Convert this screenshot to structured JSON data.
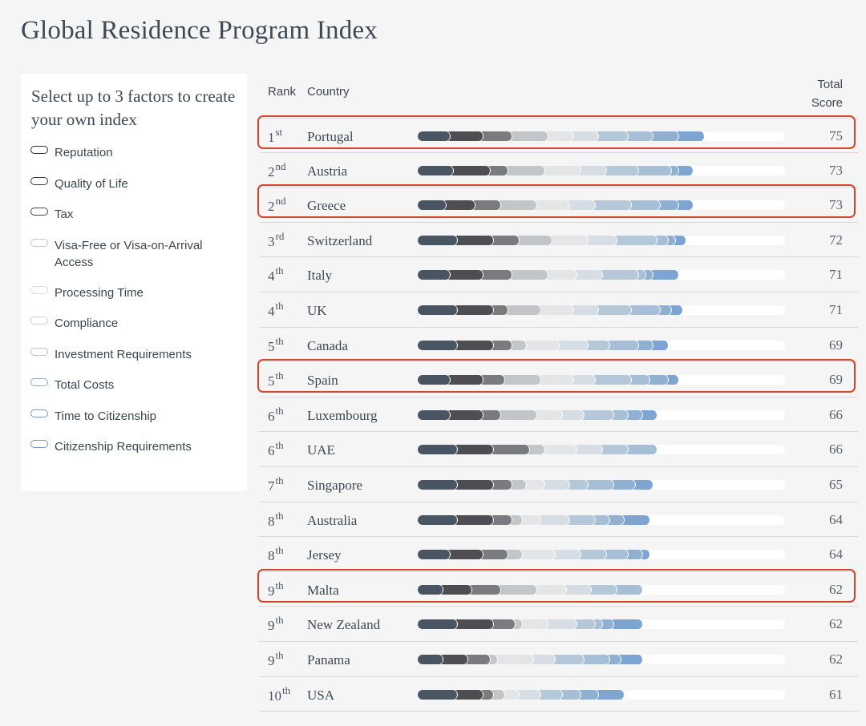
{
  "title": "Global Residence Program Index",
  "factors": {
    "heading": "Select up to 3 factors to create your own index",
    "items": [
      {
        "label": "Reputation",
        "color": "#2c2c2c"
      },
      {
        "label": "Quality of Life",
        "color": "#3a3a3a"
      },
      {
        "label": "Tax",
        "color": "#444444"
      },
      {
        "label": "Visa-Free or Visa-on-Arrival Access",
        "color": "#c8c8c8"
      },
      {
        "label": "Processing Time",
        "color": "#dcdcdc"
      },
      {
        "label": "Compliance",
        "color": "#c9d2da"
      },
      {
        "label": "Investment Requirements",
        "color": "#b3c3d3"
      },
      {
        "label": "Total Costs",
        "color": "#8aa8c8"
      },
      {
        "label": "Time to Citizenship",
        "color": "#6f98c6"
      },
      {
        "label": "Citizenship Requirements",
        "color": "#6e97c6"
      }
    ]
  },
  "table": {
    "rank_header": "Rank",
    "country_header": "Country",
    "score_header_line1": "Total",
    "score_header_line2": "Score",
    "segment_colors": [
      "#4a5563",
      "#4d4d52",
      "#797b7e",
      "#c3c6c9",
      "#e3e5e7",
      "#d6dde4",
      "#b5c8da",
      "#a6bfd7",
      "#8fb0d3",
      "#7ea5d2"
    ],
    "rows": [
      {
        "rank": "1",
        "suffix": "st",
        "country": "Portugal",
        "score": "75",
        "highlight": true,
        "segments": [
          9,
          9,
          8,
          10,
          7,
          7,
          8,
          7,
          7,
          7
        ]
      },
      {
        "rank": "2",
        "suffix": "nd",
        "country": "Austria",
        "score": "73",
        "highlight": false,
        "segments": [
          10,
          10,
          5,
          10,
          10,
          7,
          9,
          9,
          2,
          4
        ]
      },
      {
        "rank": "2",
        "suffix": "nd",
        "country": "Greece",
        "score": "73",
        "highlight": true,
        "segments": [
          8,
          8,
          7,
          10,
          9,
          7,
          10,
          8,
          5,
          4
        ]
      },
      {
        "rank": "3",
        "suffix": "rd",
        "country": "Switzerland",
        "score": "72",
        "highlight": false,
        "segments": [
          11,
          10,
          7,
          9,
          10,
          8,
          11,
          3,
          2,
          3
        ]
      },
      {
        "rank": "4",
        "suffix": "th",
        "country": "Italy",
        "score": "71",
        "highlight": false,
        "segments": [
          9,
          9,
          8,
          10,
          8,
          7,
          10,
          2,
          2,
          7
        ]
      },
      {
        "rank": "4",
        "suffix": "th",
        "country": "UK",
        "score": "71",
        "highlight": false,
        "segments": [
          11,
          10,
          4,
          9,
          9,
          7,
          9,
          8,
          3,
          3
        ]
      },
      {
        "rank": "5",
        "suffix": "th",
        "country": "Canada",
        "score": "69",
        "highlight": false,
        "segments": [
          11,
          10,
          5,
          4,
          9,
          8,
          6,
          8,
          4,
          4
        ]
      },
      {
        "rank": "5",
        "suffix": "th",
        "country": "Spain",
        "score": "69",
        "highlight": true,
        "segments": [
          9,
          9,
          6,
          10,
          9,
          6,
          10,
          5,
          5,
          3
        ]
      },
      {
        "rank": "6",
        "suffix": "th",
        "country": "Luxembourg",
        "score": "66",
        "highlight": false,
        "segments": [
          9,
          9,
          5,
          10,
          7,
          6,
          8,
          4,
          4,
          4
        ]
      },
      {
        "rank": "6",
        "suffix": "th",
        "country": "UAE",
        "score": "66",
        "highlight": false,
        "segments": [
          11,
          10,
          10,
          4,
          9,
          7,
          7,
          8,
          0,
          0
        ]
      },
      {
        "rank": "7",
        "suffix": "th",
        "country": "Singapore",
        "score": "65",
        "highlight": false,
        "segments": [
          11,
          10,
          5,
          4,
          5,
          7,
          5,
          7,
          6,
          5
        ]
      },
      {
        "rank": "8",
        "suffix": "th",
        "country": "Australia",
        "score": "64",
        "highlight": false,
        "segments": [
          11,
          10,
          5,
          3,
          5,
          8,
          7,
          4,
          4,
          7
        ]
      },
      {
        "rank": "8",
        "suffix": "th",
        "country": "Jersey",
        "score": "64",
        "highlight": false,
        "segments": [
          9,
          9,
          7,
          4,
          9,
          7,
          7,
          6,
          4,
          2
        ]
      },
      {
        "rank": "9",
        "suffix": "th",
        "country": "Malta",
        "score": "62",
        "highlight": true,
        "segments": [
          7,
          8,
          8,
          10,
          8,
          7,
          7,
          7,
          0,
          0
        ]
      },
      {
        "rank": "9",
        "suffix": "th",
        "country": "New Zealand",
        "score": "62",
        "highlight": false,
        "segments": [
          11,
          10,
          6,
          2,
          7,
          8,
          5,
          2,
          3,
          8
        ]
      },
      {
        "rank": "9",
        "suffix": "th",
        "country": "Panama",
        "score": "62",
        "highlight": false,
        "segments": [
          7,
          7,
          6,
          2,
          10,
          6,
          8,
          7,
          3,
          6
        ]
      },
      {
        "rank": "10",
        "suffix": "th",
        "country": "USA",
        "score": "61",
        "highlight": false,
        "segments": [
          11,
          7,
          3,
          3,
          4,
          6,
          6,
          5,
          5,
          7
        ]
      }
    ]
  }
}
